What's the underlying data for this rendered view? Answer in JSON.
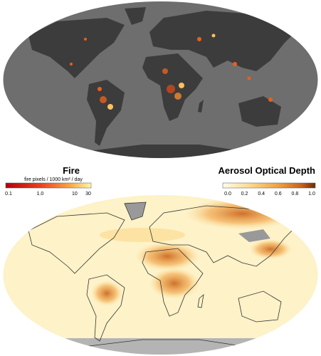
{
  "fire_legend": {
    "title": "Fire",
    "units": "fire pixels / 1000 km² / day",
    "ticks": [
      "0.1",
      "1.0",
      "10",
      "30"
    ]
  },
  "aerosol_legend": {
    "title": "Aerosol Optical Depth",
    "ticks": [
      "0.0",
      "0.2",
      "0.4",
      "0.6",
      "0.8",
      "1.0"
    ]
  }
}
